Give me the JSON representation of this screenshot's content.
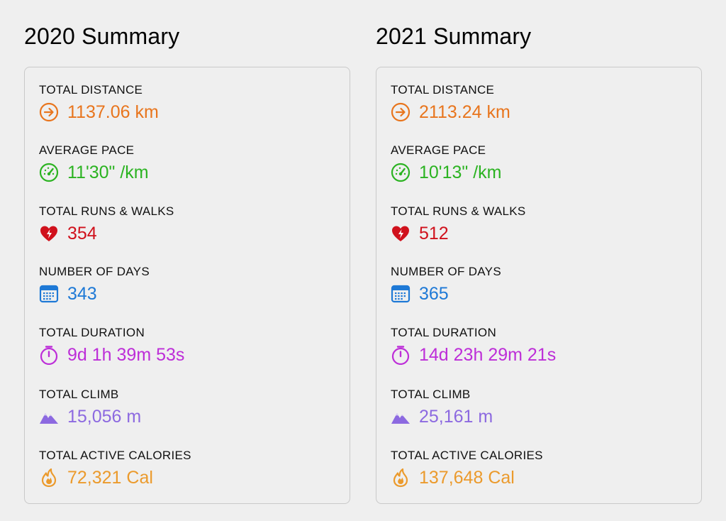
{
  "summaries": [
    {
      "title": "2020 Summary",
      "stats": [
        {
          "label": "TOTAL DISTANCE",
          "value": "1137.06 km",
          "icon": "arrow-right-circle-icon",
          "color": "#e8751d"
        },
        {
          "label": "AVERAGE PACE",
          "value": "11'30\" /km",
          "icon": "speedometer-icon",
          "color": "#2bb321"
        },
        {
          "label": "TOTAL RUNS & WALKS",
          "value": "354",
          "icon": "heart-bolt-icon",
          "color": "#d0111c"
        },
        {
          "label": "NUMBER OF DAYS",
          "value": "343",
          "icon": "calendar-icon",
          "color": "#1e79d6"
        },
        {
          "label": "TOTAL DURATION",
          "value": "9d 1h 39m 53s",
          "icon": "stopwatch-icon",
          "color": "#bd2ed8"
        },
        {
          "label": "TOTAL CLIMB",
          "value": "15,056 m",
          "icon": "mountain-icon",
          "color": "#8c69e0"
        },
        {
          "label": "TOTAL ACTIVE CALORIES",
          "value": "72,321 Cal",
          "icon": "flame-icon",
          "color": "#eb9a2c"
        }
      ]
    },
    {
      "title": "2021 Summary",
      "stats": [
        {
          "label": "TOTAL DISTANCE",
          "value": "2113.24 km",
          "icon": "arrow-right-circle-icon",
          "color": "#e8751d"
        },
        {
          "label": "AVERAGE PACE",
          "value": "10'13\" /km",
          "icon": "speedometer-icon",
          "color": "#2bb321"
        },
        {
          "label": "TOTAL RUNS & WALKS",
          "value": "512",
          "icon": "heart-bolt-icon",
          "color": "#d0111c"
        },
        {
          "label": "NUMBER OF DAYS",
          "value": "365",
          "icon": "calendar-icon",
          "color": "#1e79d6"
        },
        {
          "label": "TOTAL DURATION",
          "value": "14d 23h 29m 21s",
          "icon": "stopwatch-icon",
          "color": "#bd2ed8"
        },
        {
          "label": "TOTAL CLIMB",
          "value": "25,161 m",
          "icon": "mountain-icon",
          "color": "#8c69e0"
        },
        {
          "label": "TOTAL ACTIVE CALORIES",
          "value": "137,648 Cal",
          "icon": "flame-icon",
          "color": "#eb9a2c"
        }
      ]
    }
  ]
}
